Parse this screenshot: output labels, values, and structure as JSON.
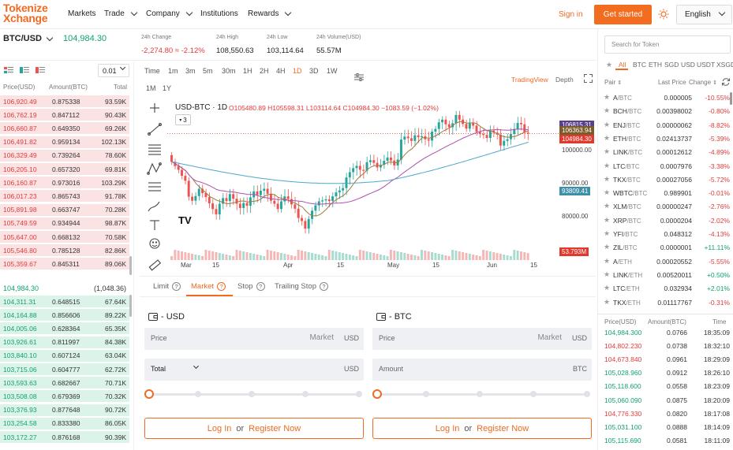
{
  "brand": {
    "line1": "Tokenize",
    "line2": "Xchange"
  },
  "nav": {
    "markets": "Markets",
    "trade": "Trade",
    "company": "Company",
    "institutions": "Institutions",
    "rewards": "Rewards",
    "signin": "Sign in",
    "get_started": "Get started",
    "language": "English"
  },
  "ticker": {
    "pair": "BTC/USD",
    "last": "104,984.30",
    "change_label": "24h Change",
    "change_value": "-2,274.80 ≈ -2.12%",
    "high_label": "24h High",
    "high_value": "108,550.63",
    "low_label": "24h Low",
    "low_value": "103,114.64",
    "vol_label": "24h Volume(USD)",
    "vol_value": "55.57M"
  },
  "orderbook": {
    "precision": "0.01",
    "col_price": "Price(USD)",
    "col_amount": "Amount(BTC)",
    "col_total": "Total",
    "asks": [
      {
        "price": "106,920.49",
        "amount": "0.875338",
        "total": "93.59K",
        "depth": 0.62
      },
      {
        "price": "106,762.19",
        "amount": "0.847112",
        "total": "90.43K",
        "depth": 0.6
      },
      {
        "price": "106,660.87",
        "amount": "0.649350",
        "total": "69.26K",
        "depth": 0.46
      },
      {
        "price": "106,491.82",
        "amount": "0.959134",
        "total": "102.13K",
        "depth": 0.68
      },
      {
        "price": "106,329.49",
        "amount": "0.739264",
        "total": "78.60K",
        "depth": 0.52
      },
      {
        "price": "106,205.10",
        "amount": "0.657320",
        "total": "69.81K",
        "depth": 0.46
      },
      {
        "price": "106,160.87",
        "amount": "0.973016",
        "total": "103.29K",
        "depth": 0.69
      },
      {
        "price": "106,017.23",
        "amount": "0.865743",
        "total": "91.78K",
        "depth": 0.61
      },
      {
        "price": "105,891.98",
        "amount": "0.663747",
        "total": "70.28K",
        "depth": 0.47
      },
      {
        "price": "105,749.59",
        "amount": "0.934944",
        "total": "98.87K",
        "depth": 0.66
      },
      {
        "price": "105,647.00",
        "amount": "0.668132",
        "total": "70.58K",
        "depth": 0.47
      },
      {
        "price": "105,546.80",
        "amount": "0.785128",
        "total": "82.86K",
        "depth": 0.55
      },
      {
        "price": "105,359.67",
        "amount": "0.845311",
        "total": "89.06K",
        "depth": 0.59
      }
    ],
    "mid_price": "104,984.30",
    "mid_total": "(1,048.36)",
    "bids": [
      {
        "price": "104,311.31",
        "amount": "0.648515",
        "total": "67.64K",
        "depth": 0.63
      },
      {
        "price": "104,164.88",
        "amount": "0.856606",
        "total": "89.22K",
        "depth": 0.63
      },
      {
        "price": "104,005.06",
        "amount": "0.628364",
        "total": "65.35K",
        "depth": 0.63
      },
      {
        "price": "103,926.61",
        "amount": "0.811997",
        "total": "84.38K",
        "depth": 0.63
      },
      {
        "price": "103,840.10",
        "amount": "0.607124",
        "total": "63.04K",
        "depth": 0.63
      },
      {
        "price": "103,715.06",
        "amount": "0.604777",
        "total": "62.72K",
        "depth": 0.63
      },
      {
        "price": "103,593.63",
        "amount": "0.682667",
        "total": "70.71K",
        "depth": 0.63
      },
      {
        "price": "103,508.08",
        "amount": "0.679369",
        "total": "70.32K",
        "depth": 0.63
      },
      {
        "price": "103,376.93",
        "amount": "0.877648",
        "total": "90.72K",
        "depth": 0.63
      },
      {
        "price": "103,254.58",
        "amount": "0.833380",
        "total": "86.05K",
        "depth": 0.63
      },
      {
        "price": "103,172.27",
        "amount": "0.876168",
        "total": "90.39K",
        "depth": 0.63
      }
    ]
  },
  "chart": {
    "timeframes": [
      "Time",
      "1m",
      "3m",
      "5m",
      "30m",
      "1H",
      "2H",
      "4H",
      "1D",
      "3D",
      "1W"
    ],
    "timeframes2": [
      "1M",
      "1Y"
    ],
    "active_tf": "1D",
    "view_tv": "TradingView",
    "view_depth": "Depth",
    "legend_title": "USD-BTC · 1D",
    "ohlc": "O105480.89 H105598.31 L103114.64 C104984.30 −1083.59 (−1.02%)",
    "ind_count": "3",
    "price_tags": [
      "106815.31",
      "106363.94",
      "104984.30"
    ],
    "ma_tag": "93809.41",
    "vol_tag": "53.793M",
    "y_ticks": [
      "100000.00",
      "90000.00",
      "80000.00"
    ],
    "x_ticks": [
      "Mar",
      "15",
      "Apr",
      "15",
      "May",
      "15",
      "Jun",
      "15"
    ],
    "tv_logo": "TV",
    "colors": {
      "up": "#26a69a",
      "down": "#ef5350",
      "ma_fast": "#a0793d",
      "ma_slow": "#b04fb0",
      "ma_long": "#4ea7c9"
    }
  },
  "chart_data": {
    "type": "candlestick",
    "title": "USD-BTC · 1D",
    "yrange": [
      75000,
      112000
    ],
    "closes": [
      96500,
      95200,
      94100,
      92300,
      90800,
      86000,
      84800,
      86200,
      88400,
      87100,
      85900,
      84000,
      82300,
      80700,
      83900,
      85600,
      84700,
      86800,
      85400,
      83900,
      82600,
      84100,
      83300,
      85800,
      87600,
      86500,
      87800,
      88400,
      86900,
      84800,
      83900,
      82300,
      84600,
      86100,
      85300,
      83700,
      82400,
      79600,
      78700,
      76400,
      79300,
      81800,
      83400,
      84600,
      84900,
      85200,
      84700,
      86100,
      87300,
      87900,
      88600,
      91800,
      93400,
      94600,
      95300,
      94100,
      93800,
      96400,
      97000,
      96200,
      94800,
      95600,
      96800,
      97800,
      96900,
      95400,
      97200,
      103200,
      104100,
      103600,
      102800,
      104500,
      103900,
      104200,
      103300,
      102900,
      105600,
      106400,
      108400,
      109200,
      107800,
      106900,
      108100,
      110600,
      109200,
      107900,
      106500,
      108300,
      107400,
      105500,
      104900,
      104600,
      103700,
      105900,
      105300,
      104700,
      101400,
      102800,
      103300,
      104900,
      106400,
      108200,
      107800,
      105300,
      104984
    ]
  },
  "order_form": {
    "tabs": [
      "Limit",
      "Market",
      "Stop",
      "Trailing Stop"
    ],
    "active_tab": "Market",
    "buy_title": "- USD",
    "sell_title": "- BTC",
    "price_label": "Price",
    "market_text": "Market",
    "usd": "USD",
    "btc": "BTC",
    "total_label": "Total",
    "amount_label": "Amount",
    "login": "Log In",
    "or": "or",
    "register": "Register Now"
  },
  "market": {
    "search_placeholder": "Search for Token",
    "tabs": [
      "All",
      "BTC",
      "ETH",
      "SGD",
      "USD",
      "USDT",
      "XSGD"
    ],
    "active_tab": "All",
    "col_pair": "Pair",
    "col_last": "Last Price",
    "col_change": "Change",
    "rows": [
      {
        "base": "A",
        "quote": "/BTC",
        "last": "0.000005",
        "change": "-10.55%",
        "dir": "down"
      },
      {
        "base": "BCH",
        "quote": "/BTC",
        "last": "0.00398002",
        "change": "-0.80%",
        "dir": "down"
      },
      {
        "base": "ENJ",
        "quote": "/BTC",
        "last": "0.00000062",
        "change": "-8.82%",
        "dir": "down"
      },
      {
        "base": "ETH",
        "quote": "/BTC",
        "last": "0.02413737",
        "change": "-5.39%",
        "dir": "down"
      },
      {
        "base": "LINK",
        "quote": "/BTC",
        "last": "0.00012612",
        "change": "-4.89%",
        "dir": "down"
      },
      {
        "base": "LTC",
        "quote": "/BTC",
        "last": "0.0007976",
        "change": "-3.38%",
        "dir": "down"
      },
      {
        "base": "TKX",
        "quote": "/BTC",
        "last": "0.00027056",
        "change": "-5.72%",
        "dir": "down"
      },
      {
        "base": "WBTC",
        "quote": "/BTC",
        "last": "0.989901",
        "change": "-0.01%",
        "dir": "down"
      },
      {
        "base": "XLM",
        "quote": "/BTC",
        "last": "0.00000247",
        "change": "-2.76%",
        "dir": "down"
      },
      {
        "base": "XRP",
        "quote": "/BTC",
        "last": "0.0000204",
        "change": "-2.02%",
        "dir": "down"
      },
      {
        "base": "YFI",
        "quote": "/BTC",
        "last": "0.048312",
        "change": "-4.13%",
        "dir": "down"
      },
      {
        "base": "ZIL",
        "quote": "/BTC",
        "last": "0.0000001",
        "change": "+11.11%",
        "dir": "up"
      },
      {
        "base": "A",
        "quote": "/ETH",
        "last": "0.00020552",
        "change": "-5.55%",
        "dir": "down"
      },
      {
        "base": "LINK",
        "quote": "/ETH",
        "last": "0.00520011",
        "change": "+0.50%",
        "dir": "up"
      },
      {
        "base": "LTC",
        "quote": "/ETH",
        "last": "0.032934",
        "change": "+2.01%",
        "dir": "up"
      },
      {
        "base": "TKX",
        "quote": "/ETH",
        "last": "0.01117767",
        "change": "-0.31%",
        "dir": "down"
      }
    ]
  },
  "trades": {
    "col_price": "Price(USD)",
    "col_amount": "Amount(BTC)",
    "col_time": "Time",
    "rows": [
      {
        "price": "104,984.300",
        "amount": "0.0766",
        "time": "18:35:09",
        "dir": "up"
      },
      {
        "price": "104,802.230",
        "amount": "0.0738",
        "time": "18:32:10",
        "dir": "down"
      },
      {
        "price": "104,673.840",
        "amount": "0.0961",
        "time": "18:29:09",
        "dir": "down"
      },
      {
        "price": "105,028.960",
        "amount": "0.0912",
        "time": "18:26:10",
        "dir": "up"
      },
      {
        "price": "105,118.600",
        "amount": "0.0558",
        "time": "18:23:09",
        "dir": "up"
      },
      {
        "price": "105,060.090",
        "amount": "0.0875",
        "time": "18:20:09",
        "dir": "up"
      },
      {
        "price": "104,776.330",
        "amount": "0.0820",
        "time": "18:17:08",
        "dir": "down"
      },
      {
        "price": "105,031.100",
        "amount": "0.0888",
        "time": "18:14:09",
        "dir": "up"
      },
      {
        "price": "105,115.690",
        "amount": "0.0581",
        "time": "18:11:09",
        "dir": "up"
      }
    ]
  }
}
